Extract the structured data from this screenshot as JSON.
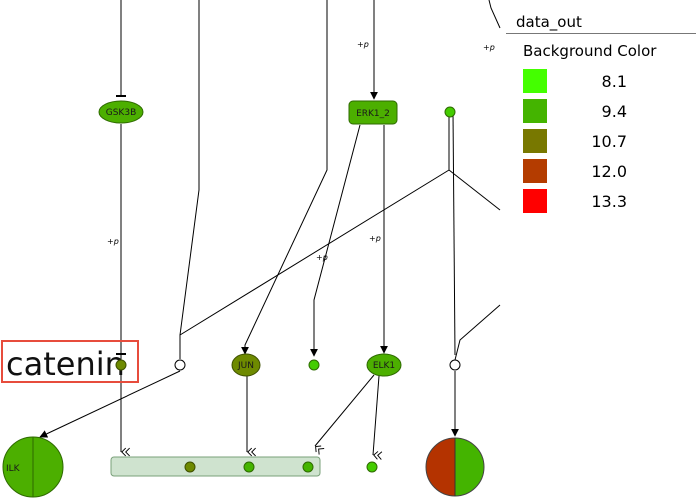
{
  "nodes": {
    "gsk3b": {
      "label": "GSK3B",
      "color": "#4caf00"
    },
    "erk1_2": {
      "label": "ERK1_2",
      "color": "#4caf00"
    },
    "jun": {
      "label": "JUN",
      "color": "#6e8a00"
    },
    "elk1": {
      "label": "ELK1",
      "color": "#4caf00"
    },
    "ilk": {
      "label": "ILK",
      "color": "#4caf00"
    },
    "catenin": {
      "label": "catenin"
    }
  },
  "edges": {
    "phospho_label": "+p"
  },
  "legend": {
    "title": "data_out",
    "subtitle": "Background Color",
    "items": [
      {
        "value": "8.1",
        "color": "#44ff00"
      },
      {
        "value": "9.4",
        "color": "#44b400"
      },
      {
        "value": "10.7",
        "color": "#787800"
      },
      {
        "value": "12.0",
        "color": "#b43c00"
      },
      {
        "value": "13.3",
        "color": "#ff0000"
      }
    ]
  },
  "colors": {
    "green": "#4caf00",
    "olive": "#6e8a00",
    "red": "#b43300",
    "complex_fill": "#cfe3cf",
    "highlight": "#e74c3c"
  }
}
